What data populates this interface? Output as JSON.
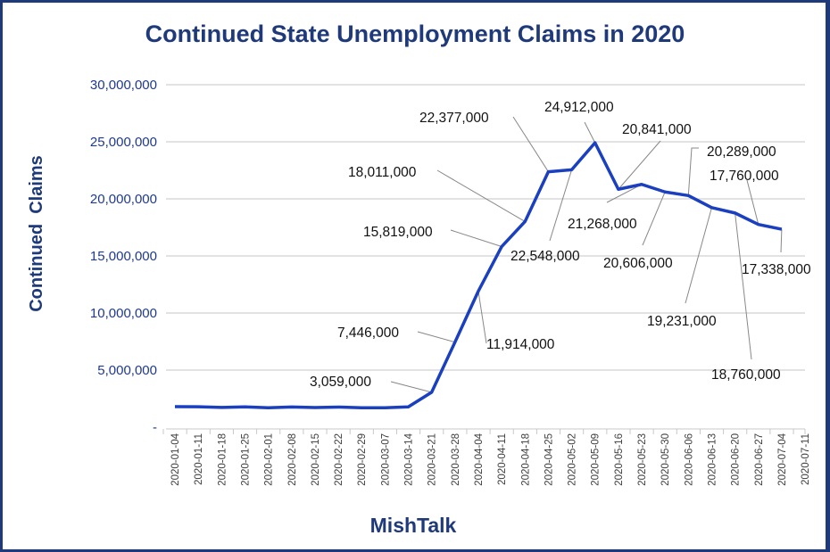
{
  "chart_data": {
    "type": "line",
    "title": "Continued State Unemployment Claims in 2020",
    "xlabel": "MishTalk",
    "ylabel": "Continued  Claims",
    "ylim": [
      0,
      30000000
    ],
    "yticks": [
      0,
      5000000,
      10000000,
      15000000,
      20000000,
      25000000,
      30000000
    ],
    "ytick_labels": [
      "-",
      "5,000,000",
      "10,000,000",
      "15,000,000",
      "20,000,000",
      "25,000,000",
      "30,000,000"
    ],
    "grid": true,
    "x": [
      "2020-01-04",
      "2020-01-11",
      "2020-01-18",
      "2020-01-25",
      "2020-02-01",
      "2020-02-08",
      "2020-02-15",
      "2020-02-22",
      "2020-02-29",
      "2020-03-07",
      "2020-03-14",
      "2020-03-21",
      "2020-03-28",
      "2020-04-04",
      "2020-04-11",
      "2020-04-18",
      "2020-04-25",
      "2020-05-02",
      "2020-05-09",
      "2020-05-16",
      "2020-05-23",
      "2020-05-30",
      "2020-06-06",
      "2020-06-13",
      "2020-06-20",
      "2020-06-27",
      "2020-07-04",
      "2020-07-11"
    ],
    "series": [
      {
        "name": "Continued Claims",
        "color": "#1a3fbf",
        "values": [
          1800000,
          1790000,
          1730000,
          1780000,
          1700000,
          1770000,
          1720000,
          1760000,
          1700000,
          1700000,
          1780000,
          3059000,
          7446000,
          11914000,
          15819000,
          18011000,
          22377000,
          22548000,
          24912000,
          20841000,
          21268000,
          20606000,
          20289000,
          19231000,
          18760000,
          17760000,
          17338000,
          null
        ]
      }
    ],
    "data_labels": [
      {
        "index": 11,
        "text": "3,059,000"
      },
      {
        "index": 12,
        "text": "7,446,000"
      },
      {
        "index": 13,
        "text": "11,914,000"
      },
      {
        "index": 14,
        "text": "15,819,000"
      },
      {
        "index": 15,
        "text": "18,011,000"
      },
      {
        "index": 16,
        "text": "22,377,000"
      },
      {
        "index": 17,
        "text": "22,548,000"
      },
      {
        "index": 18,
        "text": "24,912,000"
      },
      {
        "index": 19,
        "text": "20,841,000"
      },
      {
        "index": 20,
        "text": "21,268,000"
      },
      {
        "index": 21,
        "text": "20,606,000"
      },
      {
        "index": 22,
        "text": "20,289,000"
      },
      {
        "index": 23,
        "text": "19,231,000"
      },
      {
        "index": 24,
        "text": "18,760,000"
      },
      {
        "index": 25,
        "text": "17,760,000"
      },
      {
        "index": 26,
        "text": "17,338,000"
      }
    ]
  }
}
